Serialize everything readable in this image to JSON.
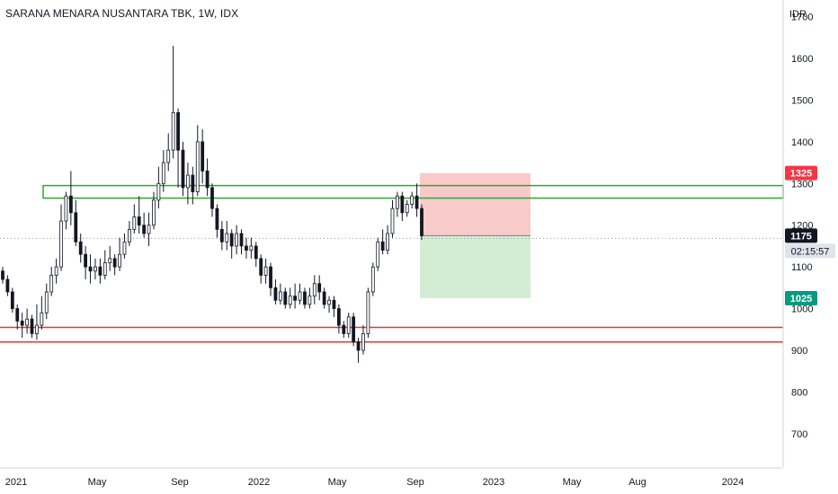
{
  "title": "SARANA MENARA NUSANTARA TBK, 1W, IDX",
  "currency": "IDR",
  "chart_data": {
    "type": "candlestick",
    "y_axis": {
      "ticks": [
        700,
        800,
        900,
        1000,
        1100,
        1200,
        1300,
        1400,
        1500,
        1600,
        1700
      ],
      "ylim": [
        620,
        1740
      ]
    },
    "x_axis": {
      "ticks": [
        "2021",
        "May",
        "Sep",
        "2022",
        "May",
        "Sep",
        "2023",
        "May",
        "Aug",
        "2024"
      ]
    },
    "price_labels": {
      "stop": {
        "text": "1325",
        "value": 1325,
        "color": "#f23645"
      },
      "last": {
        "text": "1175",
        "value": 1175,
        "color": "#131722"
      },
      "countdown": {
        "text": "02:15:57"
      },
      "target": {
        "text": "1025",
        "value": 1025,
        "color": "#089981"
      }
    },
    "zones": {
      "resistance": {
        "low": 1265,
        "high": 1295,
        "color": "#2fa82f"
      },
      "support_lines": [
        955,
        920
      ],
      "support_color": "#e53935",
      "risk_box": {
        "low": 1175,
        "high": 1325,
        "color": "#f8c4c4"
      },
      "reward_box": {
        "low": 1025,
        "high": 1175,
        "color": "#cdebcf"
      }
    },
    "candles": [
      [
        1090,
        1070,
        1100,
        1060
      ],
      [
        1070,
        1040,
        1080,
        1030
      ],
      [
        1040,
        1000,
        1050,
        990
      ],
      [
        1000,
        970,
        1010,
        950
      ],
      [
        970,
        960,
        990,
        930
      ],
      [
        960,
        975,
        1000,
        940
      ],
      [
        975,
        940,
        985,
        930
      ],
      [
        940,
        960,
        1010,
        925
      ],
      [
        960,
        990,
        1030,
        950
      ],
      [
        990,
        1040,
        1060,
        975
      ],
      [
        1040,
        1080,
        1100,
        1030
      ],
      [
        1080,
        1100,
        1120,
        1060
      ],
      [
        1100,
        1210,
        1250,
        1090
      ],
      [
        1210,
        1270,
        1280,
        1190
      ],
      [
        1270,
        1230,
        1330,
        1200
      ],
      [
        1230,
        1160,
        1260,
        1150
      ],
      [
        1160,
        1130,
        1180,
        1110
      ],
      [
        1130,
        1100,
        1150,
        1070
      ],
      [
        1100,
        1090,
        1130,
        1060
      ],
      [
        1090,
        1100,
        1120,
        1070
      ],
      [
        1100,
        1080,
        1120,
        1060
      ],
      [
        1080,
        1110,
        1140,
        1070
      ],
      [
        1110,
        1120,
        1150,
        1090
      ],
      [
        1120,
        1100,
        1130,
        1080
      ],
      [
        1100,
        1130,
        1170,
        1090
      ],
      [
        1130,
        1160,
        1180,
        1120
      ],
      [
        1160,
        1190,
        1210,
        1150
      ],
      [
        1190,
        1220,
        1250,
        1180
      ],
      [
        1220,
        1200,
        1270,
        1180
      ],
      [
        1200,
        1180,
        1230,
        1170
      ],
      [
        1180,
        1200,
        1230,
        1150
      ],
      [
        1200,
        1260,
        1280,
        1190
      ],
      [
        1260,
        1300,
        1340,
        1240
      ],
      [
        1300,
        1350,
        1380,
        1280
      ],
      [
        1350,
        1380,
        1420,
        1330
      ],
      [
        1380,
        1470,
        1630,
        1360
      ],
      [
        1470,
        1380,
        1480,
        1290
      ],
      [
        1380,
        1290,
        1400,
        1270
      ],
      [
        1290,
        1320,
        1350,
        1250
      ],
      [
        1320,
        1280,
        1340,
        1250
      ],
      [
        1280,
        1400,
        1440,
        1270
      ],
      [
        1400,
        1330,
        1430,
        1300
      ],
      [
        1330,
        1290,
        1360,
        1270
      ],
      [
        1290,
        1240,
        1300,
        1220
      ],
      [
        1240,
        1190,
        1250,
        1170
      ],
      [
        1190,
        1160,
        1210,
        1140
      ],
      [
        1160,
        1180,
        1210,
        1140
      ],
      [
        1180,
        1150,
        1190,
        1120
      ],
      [
        1150,
        1180,
        1200,
        1130
      ],
      [
        1180,
        1150,
        1190,
        1130
      ],
      [
        1150,
        1140,
        1170,
        1120
      ],
      [
        1140,
        1150,
        1170,
        1120
      ],
      [
        1150,
        1120,
        1160,
        1100
      ],
      [
        1120,
        1080,
        1130,
        1060
      ],
      [
        1080,
        1100,
        1120,
        1060
      ],
      [
        1100,
        1050,
        1110,
        1030
      ],
      [
        1050,
        1020,
        1070,
        1010
      ],
      [
        1020,
        1040,
        1060,
        1010
      ],
      [
        1040,
        1010,
        1050,
        1000
      ],
      [
        1010,
        1030,
        1050,
        1000
      ],
      [
        1030,
        1020,
        1060,
        1000
      ],
      [
        1020,
        1040,
        1060,
        1010
      ],
      [
        1040,
        1010,
        1050,
        1000
      ],
      [
        1010,
        1030,
        1050,
        1000
      ],
      [
        1030,
        1060,
        1080,
        1010
      ],
      [
        1060,
        1040,
        1080,
        1020
      ],
      [
        1040,
        1010,
        1050,
        1000
      ],
      [
        1010,
        1020,
        1030,
        990
      ],
      [
        1020,
        1000,
        1030,
        980
      ],
      [
        1000,
        960,
        1010,
        940
      ],
      [
        960,
        940,
        970,
        930
      ],
      [
        940,
        980,
        990,
        930
      ],
      [
        980,
        920,
        990,
        910
      ],
      [
        920,
        900,
        930,
        870
      ],
      [
        900,
        940,
        960,
        890
      ],
      [
        940,
        1040,
        1050,
        930
      ],
      [
        1040,
        1100,
        1110,
        1030
      ],
      [
        1100,
        1160,
        1170,
        1090
      ],
      [
        1160,
        1140,
        1190,
        1130
      ],
      [
        1140,
        1180,
        1200,
        1130
      ],
      [
        1180,
        1240,
        1260,
        1170
      ],
      [
        1240,
        1270,
        1280,
        1220
      ],
      [
        1270,
        1230,
        1280,
        1210
      ],
      [
        1230,
        1250,
        1260,
        1220
      ],
      [
        1250,
        1270,
        1280,
        1240
      ],
      [
        1270,
        1240,
        1300,
        1220
      ],
      [
        1240,
        1175,
        1250,
        1165
      ]
    ]
  },
  "icons": {
    "up_color": "#131722",
    "down_color": "#131722",
    "grid_color": "#e0e3eb"
  }
}
